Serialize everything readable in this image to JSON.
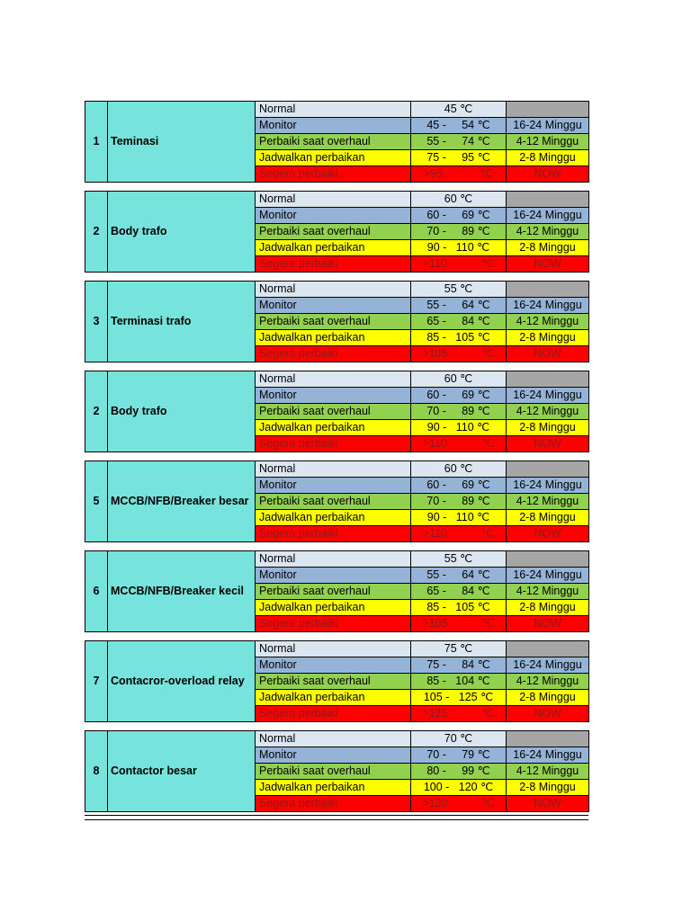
{
  "page": {
    "background": "#FFFFFF"
  },
  "colors": {
    "equipment_bg": "#76E4DC",
    "normal_bg": "#DCE6F1",
    "monitor_bg": "#95B3D7",
    "overhaul_bg": "#92D050",
    "schedule_bg": "#FFFF00",
    "urgent_bg": "#FF0000",
    "urgent_text": "#8B1A1A",
    "empty_bg": "#A6A6A6",
    "border": "#000000"
  },
  "table": {
    "row_labels": [
      "Normal",
      "Monitor",
      "Perbaiki saat overhaul",
      "Jadwalkan perbaikan",
      "Segera perbaiki"
    ],
    "week_labels": [
      "",
      "16-24 Minggu",
      "4-12 Minggu",
      "2-8 Minggu",
      "NOW"
    ],
    "blocks": [
      {
        "num": "1",
        "name": "Teminasi",
        "rows": [
          {
            "label": "Normal",
            "temp": "45 ℃",
            "weeks": ""
          },
          {
            "label": "Monitor",
            "temp": "45 -     54 ℃",
            "weeks": "16-24 Minggu"
          },
          {
            "label": "Perbaiki saat overhaul",
            "temp": "55 -     74 ℃",
            "weeks": "4-12 Minggu"
          },
          {
            "label": "Jadwalkan perbaikan",
            "temp": "75 -     95 ℃",
            "weeks": "2-8 Minggu"
          },
          {
            "label": "Segera perbaiki",
            "temp": ">95            ℃",
            "weeks": "NOW"
          }
        ]
      },
      {
        "num": "2",
        "name": "Body trafo",
        "rows": [
          {
            "label": "Normal",
            "temp": "60 ℃",
            "weeks": ""
          },
          {
            "label": "Monitor",
            "temp": "60 -     69 ℃",
            "weeks": "16-24 Minggu"
          },
          {
            "label": "Perbaiki saat overhaul",
            "temp": "70 -     89 ℃",
            "weeks": "4-12 Minggu"
          },
          {
            "label": "Jadwalkan perbaikan",
            "temp": "90 -   110 ℃",
            "weeks": "2-8 Minggu"
          },
          {
            "label": "Segera perbaiki",
            "temp": ">110           ℃",
            "weeks": "NOW"
          }
        ]
      },
      {
        "num": "3",
        "name": "Terminasi trafo",
        "rows": [
          {
            "label": "Normal",
            "temp": "55 ℃",
            "weeks": ""
          },
          {
            "label": "Monitor",
            "temp": "55 -     64 ℃",
            "weeks": "16-24 Minggu"
          },
          {
            "label": "Perbaiki saat overhaul",
            "temp": "65 -     84 ℃",
            "weeks": "4-12 Minggu"
          },
          {
            "label": "Jadwalkan perbaikan",
            "temp": "85 -   105 ℃",
            "weeks": "2-8 Minggu"
          },
          {
            "label": "Segera perbaiki",
            "temp": ">105           ℃",
            "weeks": "NOW"
          }
        ]
      },
      {
        "num": "2",
        "name": "Body trafo",
        "rows": [
          {
            "label": "Normal",
            "temp": "60 ℃",
            "weeks": ""
          },
          {
            "label": "Monitor",
            "temp": "60 -     69 ℃",
            "weeks": "16-24 Minggu"
          },
          {
            "label": "Perbaiki saat overhaul",
            "temp": "70 -     89 ℃",
            "weeks": "4-12 Minggu"
          },
          {
            "label": "Jadwalkan perbaikan",
            "temp": "90 -   110 ℃",
            "weeks": "2-8 Minggu"
          },
          {
            "label": "Segera perbaiki",
            "temp": ">110           ℃",
            "weeks": "NOW"
          }
        ]
      },
      {
        "num": "5",
        "name": "MCCB/NFB/Breaker besar",
        "rows": [
          {
            "label": "Normal",
            "temp": "60 ℃",
            "weeks": ""
          },
          {
            "label": "Monitor",
            "temp": "60 -     69 ℃",
            "weeks": "16-24 Minggu"
          },
          {
            "label": "Perbaiki saat overhaul",
            "temp": "70 -     89 ℃",
            "weeks": "4-12 Minggu"
          },
          {
            "label": "Jadwalkan perbaikan",
            "temp": "90 -   110 ℃",
            "weeks": "2-8 Minggu"
          },
          {
            "label": "Segera perbaiki",
            "temp": ">110           ℃",
            "weeks": "NOW"
          }
        ]
      },
      {
        "num": "6",
        "name": "MCCB/NFB/Breaker kecil",
        "rows": [
          {
            "label": "Normal",
            "temp": "55 ℃",
            "weeks": ""
          },
          {
            "label": "Monitor",
            "temp": "55 -     64 ℃",
            "weeks": "16-24 Minggu"
          },
          {
            "label": "Perbaiki saat overhaul",
            "temp": "65 -     84 ℃",
            "weeks": "4-12 Minggu"
          },
          {
            "label": "Jadwalkan perbaikan",
            "temp": "85 -   105 ℃",
            "weeks": "2-8 Minggu"
          },
          {
            "label": "Segera perbaiki",
            "temp": ">105           ℃",
            "weeks": "NOW"
          }
        ]
      },
      {
        "num": "7",
        "name": "Contacror-overload relay",
        "rows": [
          {
            "label": "Normal",
            "temp": "75 ℃",
            "weeks": ""
          },
          {
            "label": "Monitor",
            "temp": "75 -     84 ℃",
            "weeks": "16-24 Minggu"
          },
          {
            "label": "Perbaiki saat overhaul",
            "temp": "85 -   104 ℃",
            "weeks": "4-12 Minggu"
          },
          {
            "label": "Jadwalkan perbaikan",
            "temp": "105 -   125 ℃",
            "weeks": "2-8 Minggu"
          },
          {
            "label": "Segera perbaiki",
            "temp": ">125           ℃",
            "weeks": "NOW"
          }
        ]
      },
      {
        "num": "8",
        "name": "Contactor besar",
        "rows": [
          {
            "label": "Normal",
            "temp": "70 ℃",
            "weeks": ""
          },
          {
            "label": "Monitor",
            "temp": "70 -     79 ℃",
            "weeks": "16-24 Minggu"
          },
          {
            "label": "Perbaiki saat overhaul",
            "temp": "80 -     99 ℃",
            "weeks": "4-12 Minggu"
          },
          {
            "label": "Jadwalkan perbaikan",
            "temp": "100 -   120 ℃",
            "weeks": "2-8 Minggu"
          },
          {
            "label": "Segera perbaiki",
            "temp": ">120           ℃",
            "weeks": "NOW"
          }
        ]
      }
    ]
  }
}
